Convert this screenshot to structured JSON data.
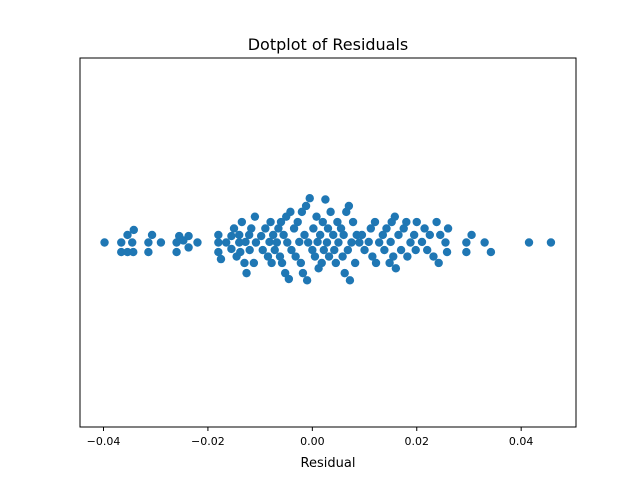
{
  "chart_data": {
    "type": "scatter",
    "subtype": "dotplot",
    "title": "Dotplot of Residuals",
    "xlabel": "Residual",
    "ylabel": "",
    "xlim": [
      -0.0445,
      0.0505
    ],
    "ylim": [
      -1,
      1
    ],
    "x_ticks": [
      -0.04,
      -0.02,
      0.0,
      0.02,
      0.04
    ],
    "x_tick_labels": [
      "−0.04",
      "−0.02",
      "0.00",
      "0.02",
      "0.04"
    ],
    "y_ticks_visible": false,
    "grid": false,
    "legend": "none",
    "marker_color": "#1f77b4",
    "points": [
      {
        "x": -0.0398,
        "y": 0
      },
      {
        "x": -0.0366,
        "y": 0
      },
      {
        "x": -0.0366,
        "y": -0.052
      },
      {
        "x": -0.0354,
        "y": -0.052
      },
      {
        "x": -0.0354,
        "y": 0.041
      },
      {
        "x": -0.0345,
        "y": 0
      },
      {
        "x": -0.0343,
        "y": -0.052
      },
      {
        "x": -0.0342,
        "y": 0.068
      },
      {
        "x": -0.0314,
        "y": 0
      },
      {
        "x": -0.0314,
        "y": -0.052
      },
      {
        "x": -0.0307,
        "y": 0.041
      },
      {
        "x": -0.029,
        "y": 0
      },
      {
        "x": -0.026,
        "y": 0
      },
      {
        "x": -0.026,
        "y": -0.052
      },
      {
        "x": -0.0255,
        "y": 0.035
      },
      {
        "x": -0.0247,
        "y": 0.011
      },
      {
        "x": -0.0237,
        "y": -0.027
      },
      {
        "x": -0.0237,
        "y": 0.035
      },
      {
        "x": -0.022,
        "y": 0
      },
      {
        "x": -0.018,
        "y": 0
      },
      {
        "x": -0.018,
        "y": -0.052
      },
      {
        "x": -0.018,
        "y": 0.041
      },
      {
        "x": -0.0175,
        "y": -0.09
      },
      {
        "x": -0.0165,
        "y": 0
      },
      {
        "x": -0.0155,
        "y": 0.035
      },
      {
        "x": -0.0155,
        "y": -0.035
      },
      {
        "x": -0.015,
        "y": 0.076
      },
      {
        "x": -0.0145,
        "y": -0.076
      },
      {
        "x": -0.014,
        "y": 0
      },
      {
        "x": -0.014,
        "y": 0.041
      },
      {
        "x": -0.0138,
        "y": -0.052
      },
      {
        "x": -0.0135,
        "y": 0.111
      },
      {
        "x": -0.013,
        "y": -0.111
      },
      {
        "x": -0.0128,
        "y": 0.003
      },
      {
        "x": -0.0126,
        "y": -0.166
      },
      {
        "x": -0.0121,
        "y": 0.041
      },
      {
        "x": -0.012,
        "y": -0.041
      },
      {
        "x": -0.0117,
        "y": 0.076
      },
      {
        "x": -0.0112,
        "y": -0.111
      },
      {
        "x": -0.011,
        "y": 0.14
      },
      {
        "x": -0.0108,
        "y": 0
      },
      {
        "x": -0.0098,
        "y": 0.035
      },
      {
        "x": -0.0095,
        "y": -0.041
      },
      {
        "x": -0.009,
        "y": 0.076
      },
      {
        "x": -0.0085,
        "y": -0.076
      },
      {
        "x": -0.0082,
        "y": 0.003
      },
      {
        "x": -0.008,
        "y": 0.111
      },
      {
        "x": -0.0078,
        "y": -0.111
      },
      {
        "x": -0.0075,
        "y": 0.041
      },
      {
        "x": -0.0072,
        "y": -0.041
      },
      {
        "x": -0.0068,
        "y": 0
      },
      {
        "x": -0.0065,
        "y": 0.076
      },
      {
        "x": -0.0062,
        "y": -0.076
      },
      {
        "x": -0.006,
        "y": 0.111
      },
      {
        "x": -0.0058,
        "y": -0.111
      },
      {
        "x": -0.0055,
        "y": 0.041
      },
      {
        "x": -0.0052,
        "y": -0.166
      },
      {
        "x": -0.005,
        "y": 0.14
      },
      {
        "x": -0.0048,
        "y": 0
      },
      {
        "x": -0.0045,
        "y": -0.198
      },
      {
        "x": -0.0042,
        "y": 0.166
      },
      {
        "x": -0.004,
        "y": -0.041
      },
      {
        "x": -0.0035,
        "y": 0.076
      },
      {
        "x": -0.0032,
        "y": -0.076
      },
      {
        "x": -0.0028,
        "y": 0.111
      },
      {
        "x": -0.0025,
        "y": 0.003
      },
      {
        "x": -0.0022,
        "y": -0.111
      },
      {
        "x": -0.002,
        "y": 0.166
      },
      {
        "x": -0.0018,
        "y": -0.166
      },
      {
        "x": -0.0015,
        "y": 0.041
      },
      {
        "x": -0.0012,
        "y": 0.198
      },
      {
        "x": -0.001,
        "y": -0.205
      },
      {
        "x": -0.0008,
        "y": 0
      },
      {
        "x": -0.0005,
        "y": 0.24
      },
      {
        "x": 0.0,
        "y": -0.041
      },
      {
        "x": 0.0002,
        "y": 0.076
      },
      {
        "x": 0.0005,
        "y": -0.076
      },
      {
        "x": 0.0008,
        "y": 0.14
      },
      {
        "x": 0.001,
        "y": 0.003
      },
      {
        "x": 0.0012,
        "y": -0.14
      },
      {
        "x": 0.0015,
        "y": 0.041
      },
      {
        "x": 0.0018,
        "y": -0.111
      },
      {
        "x": 0.002,
        "y": 0.111
      },
      {
        "x": 0.0022,
        "y": -0.041
      },
      {
        "x": 0.0025,
        "y": 0.233
      },
      {
        "x": 0.0028,
        "y": 0
      },
      {
        "x": 0.003,
        "y": 0.076
      },
      {
        "x": 0.0032,
        "y": -0.076
      },
      {
        "x": 0.0035,
        "y": 0.166
      },
      {
        "x": 0.004,
        "y": 0.041
      },
      {
        "x": 0.0042,
        "y": -0.041
      },
      {
        "x": 0.0045,
        "y": -0.111
      },
      {
        "x": 0.0048,
        "y": 0.111
      },
      {
        "x": 0.005,
        "y": 0
      },
      {
        "x": 0.0055,
        "y": 0.076
      },
      {
        "x": 0.0058,
        "y": -0.076
      },
      {
        "x": 0.006,
        "y": 0.041
      },
      {
        "x": 0.0062,
        "y": -0.166
      },
      {
        "x": 0.0065,
        "y": 0.166
      },
      {
        "x": 0.0068,
        "y": -0.041
      },
      {
        "x": 0.007,
        "y": 0.198
      },
      {
        "x": 0.0072,
        "y": -0.205
      },
      {
        "x": 0.0075,
        "y": 0
      },
      {
        "x": 0.0078,
        "y": 0.111
      },
      {
        "x": 0.0082,
        "y": -0.111
      },
      {
        "x": 0.0085,
        "y": 0.041
      },
      {
        "x": 0.009,
        "y": 0
      },
      {
        "x": 0.0095,
        "y": 0.041
      },
      {
        "x": 0.01,
        "y": -0.041
      },
      {
        "x": 0.0108,
        "y": 0.003
      },
      {
        "x": 0.0112,
        "y": 0.076
      },
      {
        "x": 0.0115,
        "y": -0.076
      },
      {
        "x": 0.012,
        "y": 0.111
      },
      {
        "x": 0.0122,
        "y": -0.111
      },
      {
        "x": 0.0128,
        "y": 0
      },
      {
        "x": 0.0135,
        "y": 0.041
      },
      {
        "x": 0.0138,
        "y": -0.041
      },
      {
        "x": 0.0142,
        "y": 0.076
      },
      {
        "x": 0.0148,
        "y": -0.111
      },
      {
        "x": 0.015,
        "y": 0.003
      },
      {
        "x": 0.0152,
        "y": 0.111
      },
      {
        "x": 0.0155,
        "y": -0.076
      },
      {
        "x": 0.0158,
        "y": 0.14
      },
      {
        "x": 0.016,
        "y": -0.14
      },
      {
        "x": 0.0165,
        "y": 0.041
      },
      {
        "x": 0.017,
        "y": -0.041
      },
      {
        "x": 0.0175,
        "y": 0.076
      },
      {
        "x": 0.018,
        "y": 0.111
      },
      {
        "x": 0.0182,
        "y": -0.076
      },
      {
        "x": 0.0188,
        "y": 0
      },
      {
        "x": 0.0195,
        "y": 0.041
      },
      {
        "x": 0.0198,
        "y": -0.041
      },
      {
        "x": 0.02,
        "y": 0.111
      },
      {
        "x": 0.021,
        "y": 0.003
      },
      {
        "x": 0.0215,
        "y": 0.076
      },
      {
        "x": 0.022,
        "y": -0.041
      },
      {
        "x": 0.0225,
        "y": 0.041
      },
      {
        "x": 0.0232,
        "y": -0.076
      },
      {
        "x": 0.0238,
        "y": 0.111
      },
      {
        "x": 0.0242,
        "y": -0.111
      },
      {
        "x": 0.0245,
        "y": 0.041
      },
      {
        "x": 0.0255,
        "y": 0
      },
      {
        "x": 0.0258,
        "y": -0.052
      },
      {
        "x": 0.026,
        "y": 0.076
      },
      {
        "x": 0.0295,
        "y": 0
      },
      {
        "x": 0.0295,
        "y": -0.052
      },
      {
        "x": 0.0305,
        "y": 0.041
      },
      {
        "x": 0.033,
        "y": 0
      },
      {
        "x": 0.0342,
        "y": -0.052
      },
      {
        "x": 0.0415,
        "y": 0
      },
      {
        "x": 0.0457,
        "y": 0
      }
    ]
  }
}
